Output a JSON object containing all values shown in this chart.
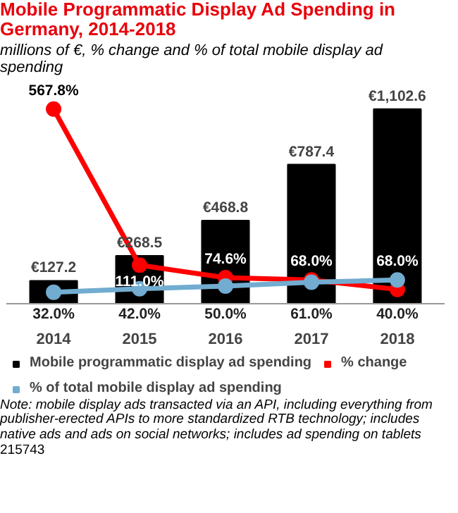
{
  "chart_data": {
    "type": "bar",
    "title": "Mobile Programmatic Display Ad Spending in Germany, 2014-2018",
    "subtitle": "millions of €, % change and % of total mobile display ad spending",
    "categories": [
      "2014",
      "2015",
      "2016",
      "2017",
      "2018"
    ],
    "series": [
      {
        "name": "Mobile programmatic display ad spending",
        "color": "#000000",
        "values": [
          127.2,
          268.5,
          468.8,
          787.4,
          1102.6
        ],
        "value_labels": [
          "€127.2",
          "€268.5",
          "€468.8",
          "€787.4",
          "€1,102.6"
        ]
      },
      {
        "name": "% change",
        "type": "line",
        "axis": "y2",
        "color": "#ff0000",
        "values": [
          567.8,
          111.0,
          74.6,
          68.0,
          40.0
        ],
        "value_labels": [
          "567.8%",
          "111.0%",
          "74.6%",
          "68.0%",
          "40.0%"
        ]
      },
      {
        "name": "% of total mobile display ad spending",
        "type": "line",
        "axis": "y2",
        "color": "#72acd0",
        "values": [
          32.0,
          42.0,
          50.0,
          61.0,
          68.0
        ],
        "value_labels": [
          "32.0%",
          "42.0%",
          "50.0%",
          "61.0%",
          "68.0%"
        ]
      }
    ],
    "tick_labels": "x",
    "marker": "circle",
    "legend": "bottom",
    "grid": false,
    "annotations": [
      "Note: mobile display ads transacted via an API, including everything from publisher-erected APIs to more standardized RTB technology; includes native ads and ads on social networks; includes ad spending on tablets",
      "215743"
    ]
  }
}
